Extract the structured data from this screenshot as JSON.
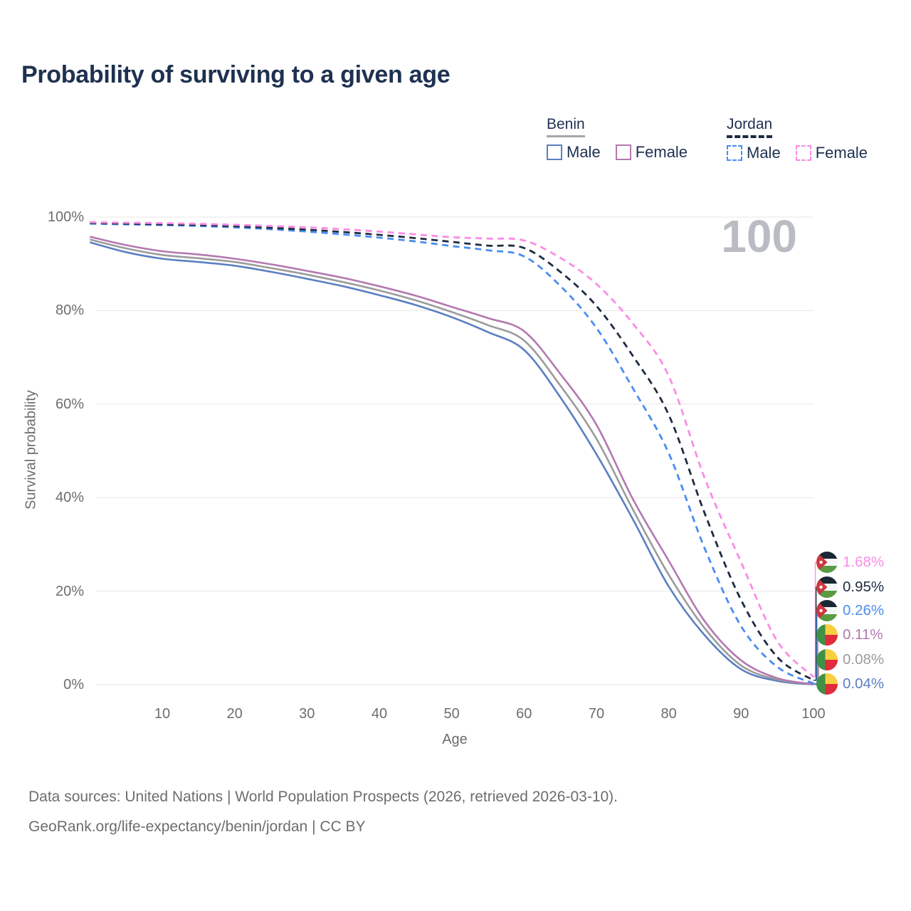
{
  "title": "Probability of surviving to a given age",
  "legend": {
    "groups": [
      {
        "label": "Benin",
        "line_style": "solid",
        "underline_color": "#a6a6a6",
        "items": [
          {
            "label": "Male",
            "color": "#5b7fc1",
            "style": "solid"
          },
          {
            "label": "Female",
            "color": "#b478b0",
            "style": "solid"
          }
        ]
      },
      {
        "label": "Jordan",
        "line_style": "dashed",
        "underline_color": "#1e2c42",
        "items": [
          {
            "label": "Male",
            "color": "#4a8df0",
            "style": "dashed"
          },
          {
            "label": "Female",
            "color": "#fb8ce5",
            "style": "dashed"
          }
        ]
      }
    ]
  },
  "axes": {
    "y_label": "Survival probability",
    "x_label": "Age",
    "y_ticks": [
      "100%",
      "80%",
      "60%",
      "40%",
      "20%",
      "0%"
    ],
    "x_ticks": [
      "10",
      "20",
      "30",
      "40",
      "50",
      "60",
      "70",
      "80",
      "90",
      "100"
    ]
  },
  "watermark_age": "100",
  "end_labels": [
    {
      "value": "1.68%",
      "flag": "jordan-flag",
      "color": "#fb8ce5",
      "series": "Jordan Female"
    },
    {
      "value": "0.95%",
      "flag": "jordan-flag",
      "color": "#1e2c42",
      "series": "Jordan Total"
    },
    {
      "value": "0.26%",
      "flag": "jordan-flag",
      "color": "#4a8df0",
      "series": "Jordan Male"
    },
    {
      "value": "0.11%",
      "flag": "benin-flag",
      "color": "#b478b0",
      "series": "Benin Female"
    },
    {
      "value": "0.08%",
      "flag": "benin-flag",
      "color": "#9b9b9b",
      "series": "Benin Total"
    },
    {
      "value": "0.04%",
      "flag": "benin-flag",
      "color": "#5b7fc1",
      "series": "Benin Male"
    }
  ],
  "footer": {
    "line1": "Data sources: United Nations | World Population Prospects (2026, retrieved 2026-03-10).",
    "line2": "GeoRank.org/life-expectancy/benin/jordan | CC BY"
  },
  "chart_data": {
    "type": "line",
    "title": "Probability of surviving to a given age",
    "xlabel": "Age",
    "ylabel": "Survival probability",
    "xlim": [
      0,
      100
    ],
    "ylim": [
      0,
      100
    ],
    "grid": "horizontal",
    "legend_position": "top-right",
    "x": [
      0,
      5,
      10,
      15,
      20,
      25,
      30,
      35,
      40,
      45,
      50,
      55,
      60,
      65,
      70,
      75,
      80,
      85,
      90,
      95,
      100
    ],
    "series": [
      {
        "name": "Benin Male",
        "country": "Benin",
        "sex": "male",
        "style": "solid",
        "color": "#5b7fc1",
        "values": [
          94.6,
          92.5,
          91.1,
          90.4,
          89.6,
          88.3,
          86.8,
          85.2,
          83.3,
          81.2,
          78.6,
          75.4,
          71.6,
          61.5,
          49.3,
          35.5,
          21.0,
          10.5,
          3.3,
          0.8,
          0.04
        ]
      },
      {
        "name": "Benin Total",
        "country": "Benin",
        "sex": "total",
        "style": "solid",
        "color": "#9b9b9b",
        "values": [
          95.2,
          93.3,
          91.9,
          91.2,
          90.4,
          89.1,
          87.7,
          86.1,
          84.3,
          82.2,
          79.7,
          76.9,
          73.6,
          64.0,
          52.6,
          37.6,
          23.5,
          12.0,
          4.1,
          1.1,
          0.08
        ]
      },
      {
        "name": "Benin Female",
        "country": "Benin",
        "sex": "female",
        "style": "solid",
        "color": "#b478b0",
        "values": [
          95.8,
          94.0,
          92.7,
          92.0,
          91.1,
          89.9,
          88.5,
          87.0,
          85.2,
          83.2,
          80.8,
          78.4,
          75.6,
          66.5,
          55.6,
          39.8,
          26.5,
          13.5,
          5.2,
          1.4,
          0.11
        ]
      },
      {
        "name": "Jordan Male",
        "country": "Jordan",
        "sex": "male",
        "style": "dashed",
        "color": "#4a8df0",
        "values": [
          98.6,
          98.45,
          98.3,
          98.1,
          97.8,
          97.4,
          96.9,
          96.3,
          95.6,
          94.8,
          93.8,
          92.9,
          91.6,
          85.3,
          76.3,
          63.5,
          49.5,
          29.0,
          12.5,
          3.8,
          0.26
        ]
      },
      {
        "name": "Jordan Total",
        "country": "Jordan",
        "sex": "total",
        "style": "dashed",
        "color": "#1e2c42",
        "values": [
          98.75,
          98.6,
          98.45,
          98.3,
          98.05,
          97.7,
          97.3,
          96.8,
          96.2,
          95.5,
          94.7,
          93.9,
          93.4,
          88.3,
          81.0,
          70.4,
          57.7,
          36.5,
          18.1,
          5.9,
          0.95
        ]
      },
      {
        "name": "Jordan Female",
        "country": "Jordan",
        "sex": "female",
        "style": "dashed",
        "color": "#fb8ce5",
        "values": [
          98.9,
          98.8,
          98.7,
          98.55,
          98.35,
          98.1,
          97.8,
          97.4,
          96.9,
          96.3,
          95.7,
          95.4,
          95.0,
          91.3,
          85.7,
          77.3,
          66.0,
          44.0,
          26.2,
          9.3,
          1.68
        ]
      }
    ]
  }
}
